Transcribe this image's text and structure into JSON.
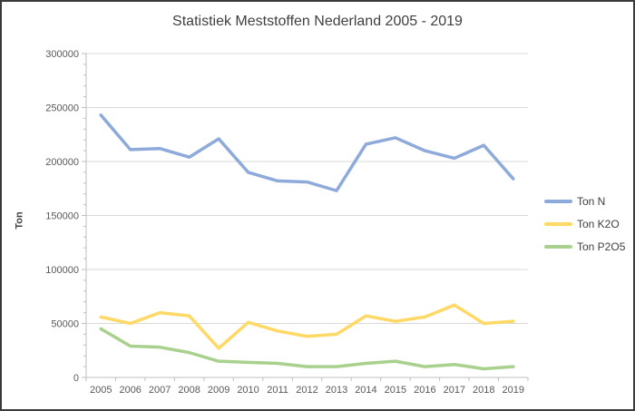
{
  "frame": {
    "border_color": "#3B3B3B",
    "background": "#FFFFFF"
  },
  "chart_data": {
    "type": "line",
    "title": "Statistiek Meststoffen Nederland 2005 - 2019",
    "xlabel": "",
    "ylabel": "Ton",
    "categories": [
      "2005",
      "2006",
      "2007",
      "2008",
      "2009",
      "2010",
      "2011",
      "2012",
      "2013",
      "2014",
      "2015",
      "2016",
      "2017",
      "2018",
      "2019"
    ],
    "series": [
      {
        "name": "Ton N",
        "color": "#8EAADB",
        "values": [
          243000,
          211000,
          212000,
          204000,
          221000,
          190000,
          182000,
          181000,
          173000,
          216000,
          222000,
          210000,
          203000,
          215000,
          184000
        ]
      },
      {
        "name": "Ton K2O",
        "color": "#FFD966",
        "values": [
          56000,
          50000,
          60000,
          57000,
          27000,
          51000,
          43000,
          38000,
          40000,
          57000,
          52000,
          56000,
          67000,
          50000,
          52000
        ]
      },
      {
        "name": "Ton P2O5",
        "color": "#A9D18E",
        "values": [
          45000,
          29000,
          28000,
          23000,
          15000,
          14000,
          13000,
          10000,
          10000,
          13000,
          15000,
          10000,
          12000,
          8000,
          10000
        ]
      }
    ],
    "ylim": [
      0,
      300000
    ],
    "ytick_step": 50000,
    "yminor_step": 10000,
    "yticks": [
      "0",
      "50000",
      "100000",
      "150000",
      "200000",
      "250000",
      "300000"
    ],
    "grid": true,
    "legend_position": "right",
    "line_width": 3.5,
    "axis_color": "#BFBFBF",
    "grid_color": "#D9D9D9",
    "tick_label_color": "#595959",
    "title_color": "#404040"
  }
}
